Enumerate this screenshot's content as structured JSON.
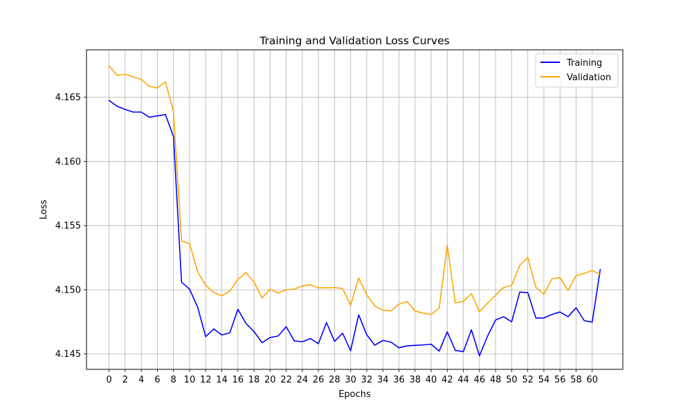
{
  "chart_data": {
    "type": "line",
    "title": "Training and Validation Loss Curves",
    "xlabel": "Epochs",
    "ylabel": "Loss",
    "xlim": [
      -2.8,
      63.8
    ],
    "ylim": [
      4.1438,
      4.1687
    ],
    "x_ticks": [
      0,
      2,
      4,
      6,
      8,
      10,
      12,
      14,
      16,
      18,
      20,
      22,
      24,
      26,
      28,
      30,
      32,
      34,
      36,
      38,
      40,
      42,
      44,
      46,
      48,
      50,
      52,
      54,
      56,
      58,
      60
    ],
    "y_ticks": [
      4.145,
      4.15,
      4.155,
      4.16,
      4.165
    ],
    "y_tick_labels": [
      "4.145",
      "4.150",
      "4.155",
      "4.160",
      "4.165"
    ],
    "grid": true,
    "legend_position": "upper right",
    "x": [
      0,
      1,
      2,
      3,
      4,
      5,
      6,
      7,
      8,
      9,
      10,
      11,
      12,
      13,
      14,
      15,
      16,
      17,
      18,
      19,
      20,
      21,
      22,
      23,
      24,
      25,
      26,
      27,
      28,
      29,
      30,
      31,
      32,
      33,
      34,
      35,
      36,
      37,
      38,
      39,
      40,
      41,
      42,
      43,
      44,
      45,
      46,
      47,
      48,
      49,
      50,
      51,
      52,
      53,
      54,
      55,
      56,
      57,
      58,
      59,
      60,
      61
    ],
    "series": [
      {
        "name": "Training",
        "color": "#0000ff",
        "values": [
          4.16475,
          4.1643,
          4.16405,
          4.16385,
          4.16385,
          4.16345,
          4.16355,
          4.16365,
          4.16195,
          4.1506,
          4.15005,
          4.14865,
          4.14635,
          4.14695,
          4.14648,
          4.14665,
          4.14848,
          4.14738,
          4.14675,
          4.14588,
          4.14628,
          4.1464,
          4.14712,
          4.14602,
          4.14595,
          4.1462,
          4.1458,
          4.14745,
          4.14598,
          4.14662,
          4.14525,
          4.14805,
          4.1465,
          4.14568,
          4.14605,
          4.14593,
          4.14548,
          4.14563,
          4.14567,
          4.1457,
          4.14576,
          4.14522,
          4.14672,
          4.14528,
          4.14518,
          4.14688,
          4.14485,
          4.14638,
          4.14765,
          4.1479,
          4.1475,
          4.14982,
          4.14978,
          4.1478,
          4.1478,
          4.14808,
          4.14827,
          4.1479,
          4.1486,
          4.1476,
          4.14748,
          4.15158
        ]
      },
      {
        "name": "Validation",
        "color": "#ffa500",
        "values": [
          4.16745,
          4.1667,
          4.1668,
          4.1666,
          4.1664,
          4.16585,
          4.16572,
          4.1662,
          4.1639,
          4.1538,
          4.1536,
          4.1514,
          4.15035,
          4.1498,
          4.14952,
          4.1499,
          4.1508,
          4.15135,
          4.1506,
          4.14935,
          4.15005,
          4.14975,
          4.15,
          4.15005,
          4.1503,
          4.1504,
          4.15015,
          4.15015,
          4.15018,
          4.1501,
          4.1488,
          4.15092,
          4.1496,
          4.14875,
          4.14842,
          4.14835,
          4.14888,
          4.14908,
          4.14835,
          4.14818,
          4.14808,
          4.14858,
          4.15348,
          4.14898,
          4.1491,
          4.1497,
          4.14828,
          4.14895,
          4.14958,
          4.15018,
          4.15035,
          4.1519,
          4.15252,
          4.1502,
          4.14965,
          4.15085,
          4.15095,
          4.14995,
          4.1511,
          4.15128,
          4.1515,
          4.1512
        ]
      }
    ]
  }
}
